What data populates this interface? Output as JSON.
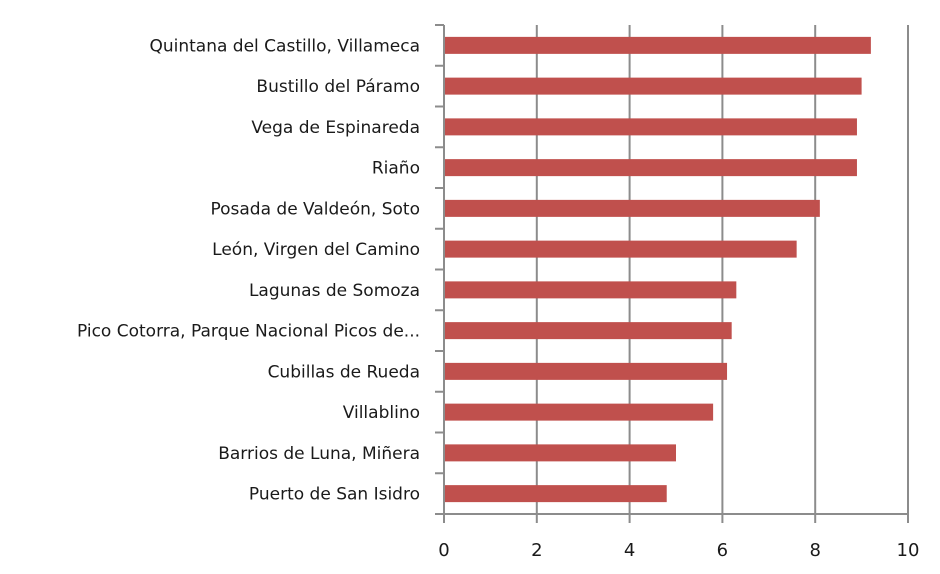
{
  "chart_data": {
    "type": "bar",
    "orientation": "horizontal",
    "title": "",
    "xlabel": "",
    "ylabel": "",
    "xlim": [
      0,
      10
    ],
    "x_ticks": [
      0,
      2,
      4,
      6,
      8,
      10
    ],
    "grid": "vertical major gridlines",
    "legend": "none",
    "bar_color": "#c0504d",
    "categories": [
      "Quintana del Castillo, Villameca",
      "Bustillo del Páramo",
      "Vega de Espinareda",
      "Riaño",
      "Posada de Valdeón, Soto",
      "León, Virgen del Camino",
      "Lagunas de Somoza",
      "Pico Cotorra, Parque Nacional Picos de...",
      "Cubillas de Rueda",
      "Villablino",
      "Barrios de Luna, Miñera",
      "Puerto de San Isidro"
    ],
    "values": [
      9.2,
      9.0,
      8.9,
      8.9,
      8.1,
      7.6,
      6.3,
      6.2,
      6.1,
      5.8,
      5.0,
      4.8
    ]
  }
}
